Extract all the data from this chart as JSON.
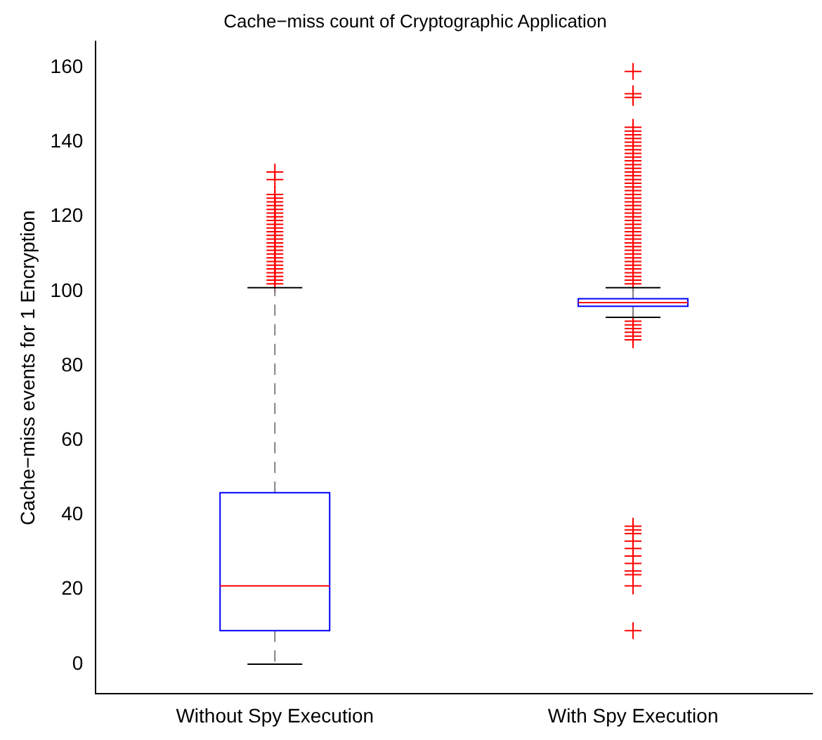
{
  "chart_data": {
    "type": "box",
    "title": "Cache−miss count of Cryptographic Application",
    "ylabel": "Cache−miss events for 1 Encryption",
    "categories": [
      "Without Spy Execution",
      "With Spy Execution"
    ],
    "color": "#0000ff",
    "boxes": [
      {
        "low": 0,
        "q1": 9,
        "median": 21,
        "q3": 46,
        "high": 101,
        "outliers": [
          102,
          103,
          104,
          105,
          106,
          107,
          108,
          109,
          110,
          111,
          112,
          113,
          114,
          115,
          116,
          117,
          118,
          119,
          120,
          121,
          122,
          123,
          124,
          125,
          126,
          130,
          132
        ]
      },
      {
        "low": 93,
        "q1": 96,
        "median": 97,
        "q3": 98,
        "high": 101,
        "outliers": [
          9,
          21,
          24,
          25,
          27,
          29,
          31,
          33,
          35,
          36,
          37,
          87,
          88,
          89,
          90,
          91,
          92,
          102,
          103,
          104,
          105,
          106,
          107,
          108,
          109,
          110,
          111,
          112,
          113,
          114,
          115,
          116,
          117,
          118,
          119,
          120,
          121,
          122,
          123,
          124,
          125,
          126,
          127,
          128,
          129,
          130,
          131,
          132,
          133,
          134,
          135,
          136,
          137,
          138,
          139,
          140,
          141,
          142,
          143,
          144,
          152,
          153,
          159
        ]
      }
    ],
    "ylim": [
      -8,
      167
    ],
    "yticks": [
      0,
      20,
      40,
      60,
      80,
      100,
      120,
      140,
      160
    ]
  }
}
